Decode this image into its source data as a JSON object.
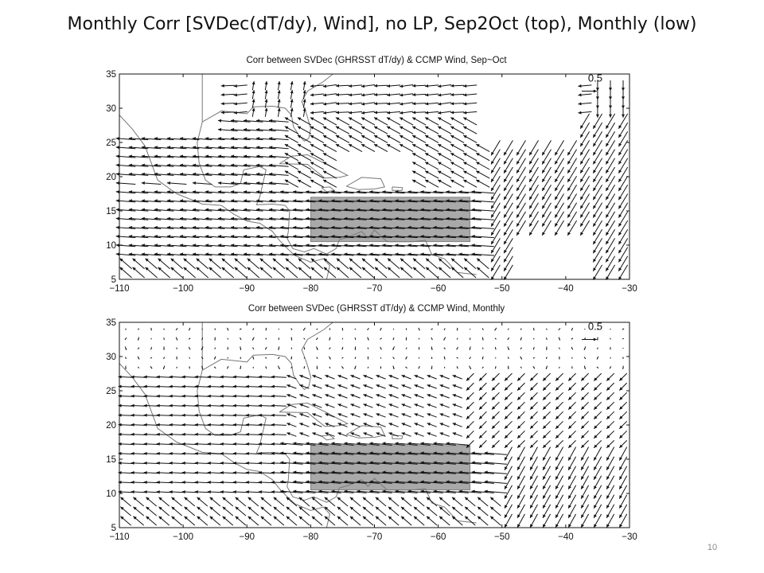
{
  "slide": {
    "title": "Monthly Corr  [SVDec(dT/dy),  Wind], no LP, Sep2Oct (top), Monthly (low)",
    "page_number": "10"
  },
  "maps": [
    {
      "title": "Corr between SVDec (GHRSST dT/dy) & CCMP Wind, Sep~Oct",
      "x_range": [
        -110,
        -30
      ],
      "y_range": [
        5,
        35
      ],
      "x_ticks": [
        "−110",
        "−100",
        "−90",
        "−80",
        "−70",
        "−60",
        "−50",
        "−40",
        "−30"
      ],
      "y_ticks": [
        "35",
        "30",
        "25",
        "20",
        "15",
        "10",
        "5"
      ],
      "reference_vector_label": "0.5",
      "reference_vector_magnitude": 0.5,
      "highlight_box": {
        "lon": [
          -80,
          -55
        ],
        "lat": [
          10.5,
          17
        ]
      },
      "field": "sparse",
      "colors": {
        "vector": "#111111",
        "coast": "#777777",
        "box": "#a9a9a9"
      }
    },
    {
      "title": "Corr between SVDec (GHRSST dT/dy) & CCMP Wind, Monthly",
      "x_range": [
        -110,
        -30
      ],
      "y_range": [
        5,
        35
      ],
      "x_ticks": [
        "−110",
        "−100",
        "−90",
        "−80",
        "−70",
        "−60",
        "−50",
        "−40",
        "−30"
      ],
      "y_ticks": [
        "35",
        "30",
        "25",
        "20",
        "15",
        "10",
        "5"
      ],
      "reference_vector_label": "0.5",
      "reference_vector_magnitude": 0.5,
      "highlight_box": {
        "lon": [
          -80,
          -55
        ],
        "lat": [
          10.5,
          17
        ]
      },
      "field": "dense",
      "colors": {
        "vector": "#111111",
        "coast": "#777777",
        "box": "#a9a9a9"
      }
    }
  ]
}
